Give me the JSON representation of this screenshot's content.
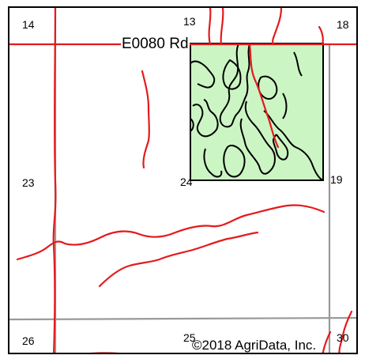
{
  "map": {
    "road_label": "E0080 Rd",
    "section_numbers": {
      "s14": "14",
      "s13": "13",
      "s18": "18",
      "s23": "23",
      "s24": "24",
      "s19": "19",
      "s26": "26",
      "s25": "25",
      "s30": "30"
    },
    "copyright": "©2018 AgriData, Inc."
  },
  "colors": {
    "road": "#e41a1c",
    "section_line": "#999999",
    "field_fill": "#ccf5c4",
    "field_border": "#000000"
  }
}
